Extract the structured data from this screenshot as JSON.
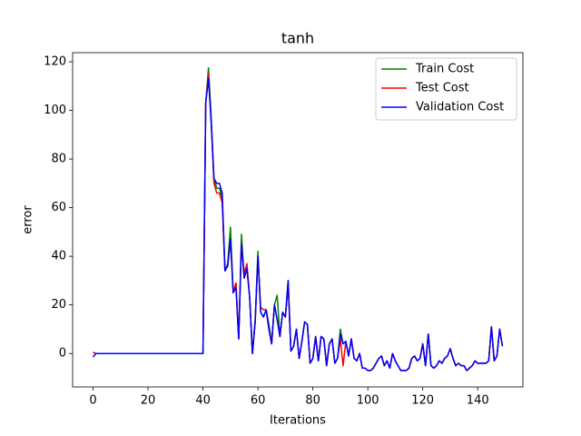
{
  "chart_data": {
    "type": "line",
    "title": "tanh",
    "x_label": "Iterations",
    "y_label": "error",
    "x": [
      0,
      1,
      2,
      3,
      4,
      5,
      6,
      7,
      8,
      9,
      10,
      11,
      12,
      13,
      14,
      15,
      16,
      17,
      18,
      19,
      20,
      21,
      22,
      23,
      24,
      25,
      26,
      27,
      28,
      29,
      30,
      31,
      32,
      33,
      34,
      35,
      36,
      37,
      38,
      39,
      40,
      41,
      42,
      43,
      44,
      45,
      46,
      47,
      48,
      49,
      50,
      51,
      52,
      53,
      54,
      55,
      56,
      57,
      58,
      59,
      60,
      61,
      62,
      63,
      64,
      65,
      66,
      67,
      68,
      69,
      70,
      71,
      72,
      73,
      74,
      75,
      76,
      77,
      78,
      79,
      80,
      81,
      82,
      83,
      84,
      85,
      86,
      87,
      88,
      89,
      90,
      91,
      92,
      93,
      94,
      95,
      96,
      97,
      98,
      99,
      100,
      101,
      102,
      103,
      104,
      105,
      106,
      107,
      108,
      109,
      110,
      111,
      112,
      113,
      114,
      115,
      116,
      117,
      118,
      119,
      120,
      121,
      122,
      123,
      124,
      125,
      126,
      127,
      128,
      129,
      130,
      131,
      132,
      133,
      134,
      135,
      136,
      137,
      138,
      139,
      140,
      141,
      142,
      143,
      144,
      145,
      146,
      147,
      148,
      149
    ],
    "series": [
      {
        "name": "Train Cost",
        "color": "#008000",
        "values": [
          0.5,
          0,
          0,
          0,
          0,
          0,
          0,
          0,
          0,
          0,
          0,
          0,
          0,
          0,
          0,
          0,
          0,
          0,
          0,
          0,
          0,
          0,
          0,
          0,
          0,
          0,
          0,
          0,
          0,
          0,
          0,
          0,
          0,
          0,
          0,
          0,
          0,
          0,
          0,
          0,
          0,
          103,
          117.5,
          97,
          72,
          68,
          68,
          64,
          34,
          37,
          52,
          25,
          29,
          6,
          49,
          31,
          35,
          23,
          0,
          14,
          42,
          17,
          15,
          18,
          12,
          4,
          20,
          24,
          7,
          17,
          15,
          30,
          1,
          3,
          10,
          -2,
          5,
          13,
          12,
          -4,
          -2,
          7,
          -3,
          7,
          6,
          -5,
          4,
          6,
          -4,
          -2,
          10,
          4,
          5,
          -1,
          6,
          -2,
          -3,
          0,
          -6,
          -6,
          -7,
          -7,
          -6,
          -4,
          -2,
          -1,
          -5,
          -3,
          -6,
          0,
          -3,
          -5,
          -7,
          -7,
          -7,
          -6,
          -2,
          -1,
          -3,
          -2,
          4,
          -5,
          8,
          -5,
          -6,
          -5,
          -3,
          -4,
          -2,
          -1,
          2,
          -2,
          -5,
          -4,
          -5,
          -5,
          -7,
          -6,
          -5,
          -3,
          -4,
          -4,
          -4,
          -4,
          -3,
          11,
          -3,
          -1,
          10,
          3
        ]
      },
      {
        "name": "Test Cost",
        "color": "#ff0000",
        "values": [
          0.5,
          0,
          0,
          0,
          0,
          0,
          0,
          0,
          0,
          0,
          0,
          0,
          0,
          0,
          0,
          0,
          0,
          0,
          0,
          0,
          0,
          0,
          0,
          0,
          0,
          0,
          0,
          0,
          0,
          0,
          0,
          0,
          0,
          0,
          0,
          0,
          0,
          0,
          0,
          0,
          0,
          103,
          115,
          95,
          70,
          66,
          66,
          62,
          34,
          36,
          47,
          25,
          29,
          6,
          45,
          33,
          37,
          23,
          0,
          13,
          40,
          19,
          18,
          18,
          10,
          4,
          20,
          14,
          7,
          17,
          15,
          28,
          1,
          3,
          10,
          -2,
          5,
          13,
          12,
          -4,
          -2,
          7,
          -3,
          7,
          6,
          -5,
          4,
          6,
          -4,
          -2,
          6,
          -5,
          5,
          -1,
          6,
          -2,
          -3,
          0,
          -6,
          -6,
          -7,
          -7,
          -6,
          -4,
          -2,
          -1,
          -5,
          -3,
          -6,
          0,
          -3,
          -5,
          -7,
          -7,
          -7,
          -6,
          -2,
          -1,
          -3,
          -2,
          4,
          -5,
          8,
          -5,
          -6,
          -5,
          -3,
          -4,
          -2,
          -1,
          2,
          -2,
          -5,
          -4,
          -5,
          -5,
          -7,
          -6,
          -5,
          -3,
          -4,
          -4,
          -4,
          -4,
          -3,
          11,
          -3,
          -1,
          10,
          3
        ]
      },
      {
        "name": "Validation Cost",
        "color": "#0000ff",
        "values": [
          -1.5,
          0,
          0,
          0,
          0,
          0,
          0,
          0,
          0,
          0,
          0,
          0,
          0,
          0,
          0,
          0,
          0,
          0,
          0,
          0,
          0,
          0,
          0,
          0,
          0,
          0,
          0,
          0,
          0,
          0,
          0,
          0,
          0,
          0,
          0,
          0,
          0,
          0,
          0,
          0,
          0,
          103,
          113,
          95,
          72,
          70,
          70,
          66,
          34,
          36,
          47,
          25,
          27,
          6,
          45,
          31,
          35,
          23,
          0,
          13,
          40,
          17,
          15,
          18,
          10,
          4,
          20,
          14,
          7,
          17,
          15,
          30,
          1,
          3,
          10,
          -2,
          5,
          13,
          12,
          -4,
          -2,
          7,
          -3,
          7,
          6,
          -5,
          4,
          6,
          -4,
          -2,
          8,
          4,
          5,
          -1,
          6,
          -2,
          -3,
          0,
          -6,
          -6,
          -7,
          -7,
          -6,
          -4,
          -2,
          -1,
          -5,
          -3,
          -6,
          0,
          -3,
          -5,
          -7,
          -7,
          -7,
          -6,
          -2,
          -1,
          -3,
          -2,
          4,
          -5,
          8,
          -5,
          -6,
          -5,
          -3,
          -4,
          -2,
          -1,
          2,
          -2,
          -5,
          -4,
          -5,
          -5,
          -7,
          -6,
          -5,
          -3,
          -4,
          -4,
          -4,
          -4,
          -3,
          11,
          -3,
          -1,
          10,
          3
        ]
      }
    ],
    "xlim": [
      -7.45,
      156.45
    ],
    "ylim": [
      -13.75,
      123.75
    ],
    "xticks": [
      0,
      20,
      40,
      60,
      80,
      100,
      120,
      140
    ],
    "yticks": [
      0,
      20,
      40,
      60,
      80,
      100,
      120
    ],
    "legend": "upper right",
    "grid": false
  }
}
